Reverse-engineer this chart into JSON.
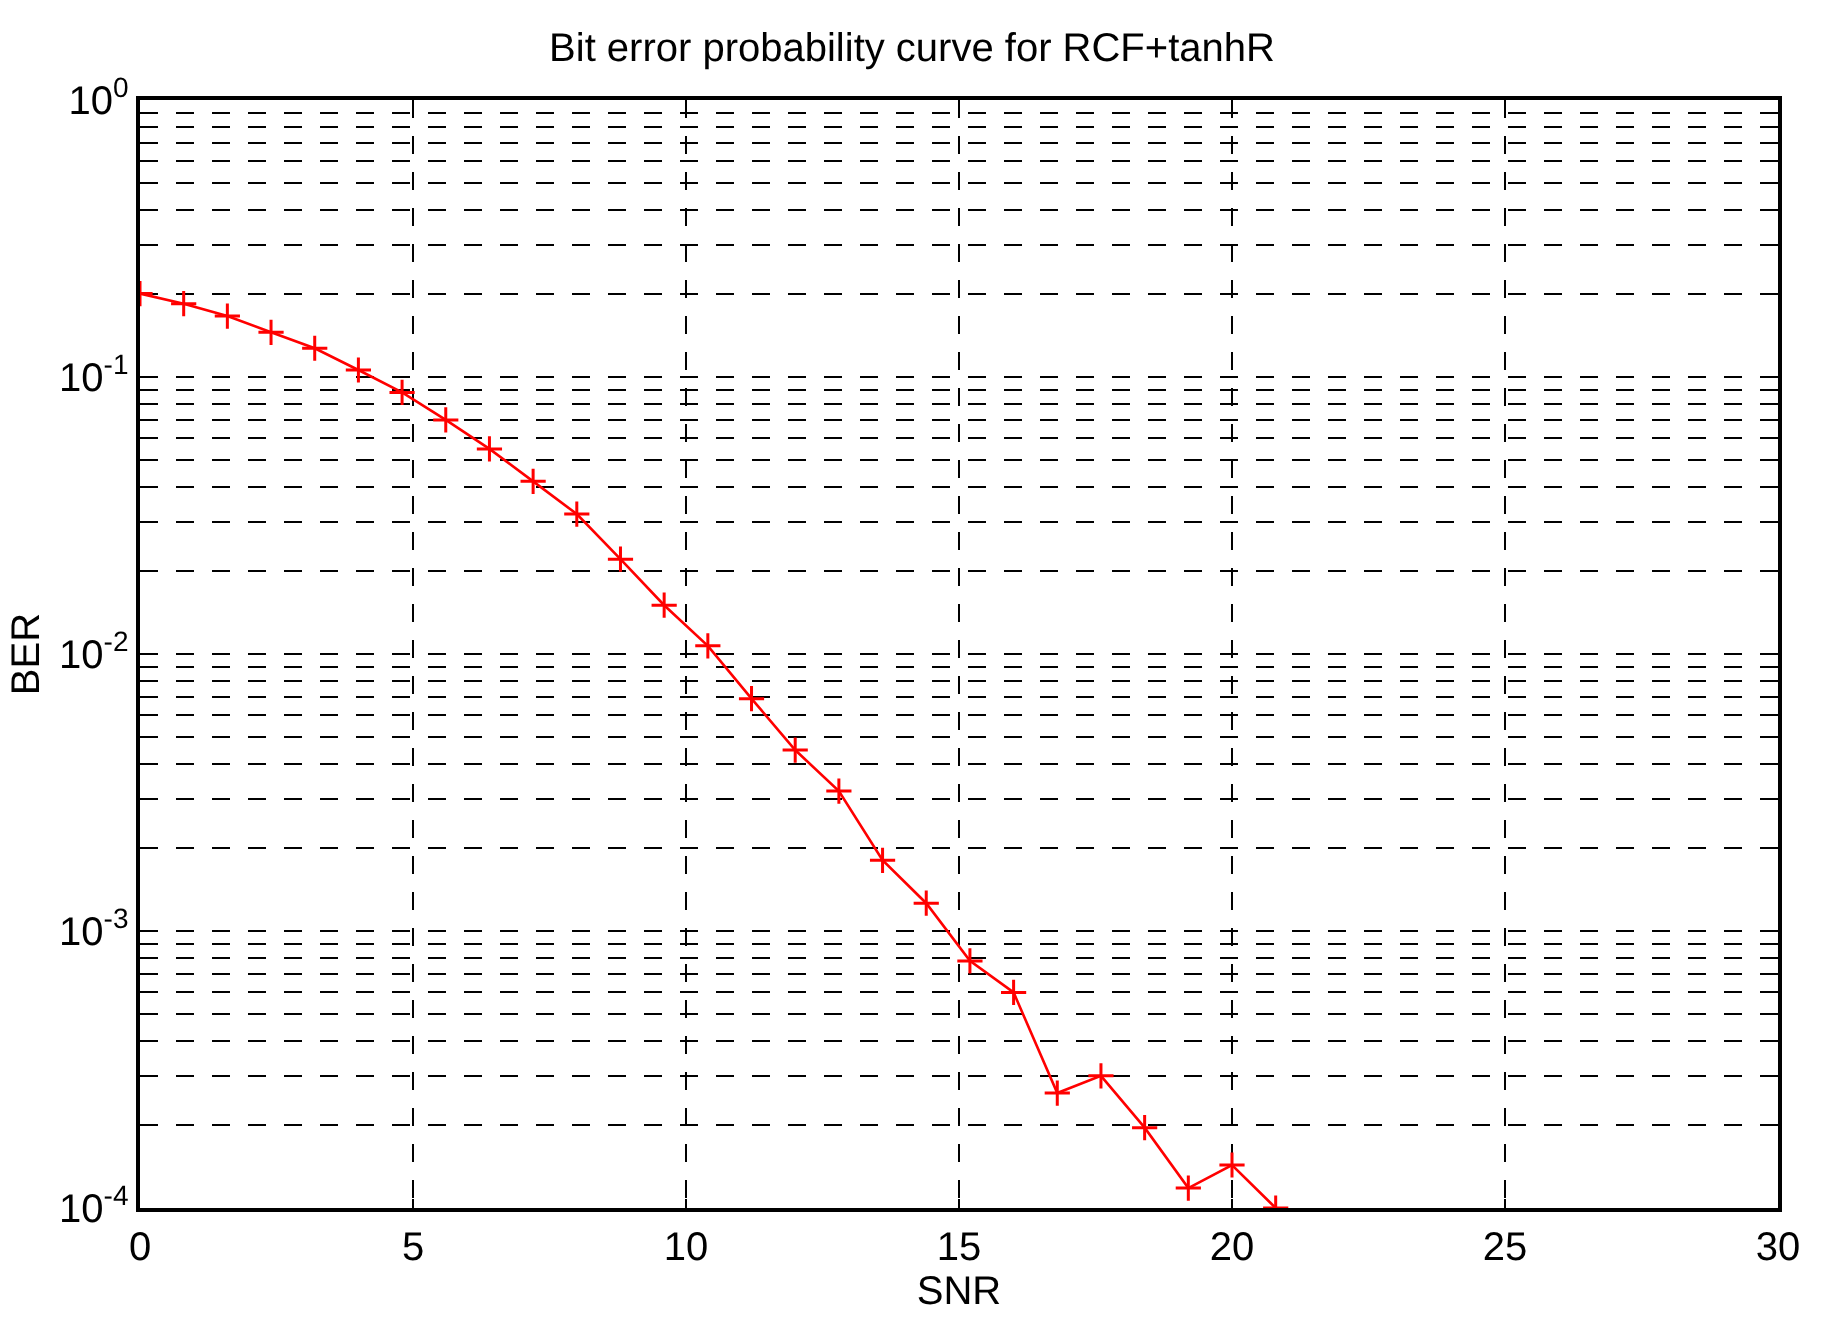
{
  "chart_data": {
    "type": "line",
    "title": "Bit error probability curve for RCF+tanhR",
    "xlabel": "SNR",
    "ylabel": "BER",
    "x": [
      0,
      0.8,
      1.6,
      2.4,
      3.2,
      4.0,
      4.8,
      5.6,
      6.4,
      7.2,
      8.0,
      8.8,
      9.6,
      10.4,
      11.2,
      12.0,
      12.8,
      13.6,
      14.4,
      15.2,
      16.0,
      16.8,
      17.6,
      18.4,
      19.2,
      20.0,
      20.8
    ],
    "series": [
      {
        "color": "#ff0000",
        "values": [
          0.2,
          0.184,
          0.166,
          0.145,
          0.127,
          0.106,
          0.088,
          0.07,
          0.055,
          0.042,
          0.032,
          0.022,
          0.015,
          0.0107,
          0.0069,
          0.0045,
          0.0032,
          0.0018,
          0.00126,
          0.00078,
          0.0006,
          0.00026,
          0.0003,
          0.000195,
          0.000118,
          0.000143,
          0.0001
        ]
      }
    ],
    "log": "y",
    "xlim": [
      0,
      30
    ],
    "xticks": [
      0,
      5,
      10,
      15,
      20,
      25,
      30
    ],
    "ylim": [
      0.0001,
      1
    ],
    "yticks": [
      {
        "value": 0.0001,
        "label": "10$^{-4}$"
      },
      {
        "value": 0.001,
        "label": "10$^{-3}$"
      },
      {
        "value": 0.01,
        "label": "10$^{-2}$"
      },
      {
        "value": 0.1,
        "label": "10$^{-1}$"
      },
      {
        "value": 1,
        "label": "10$^{0}$"
      }
    ],
    "grid": true,
    "marker": "cross",
    "line_style": "solid"
  }
}
